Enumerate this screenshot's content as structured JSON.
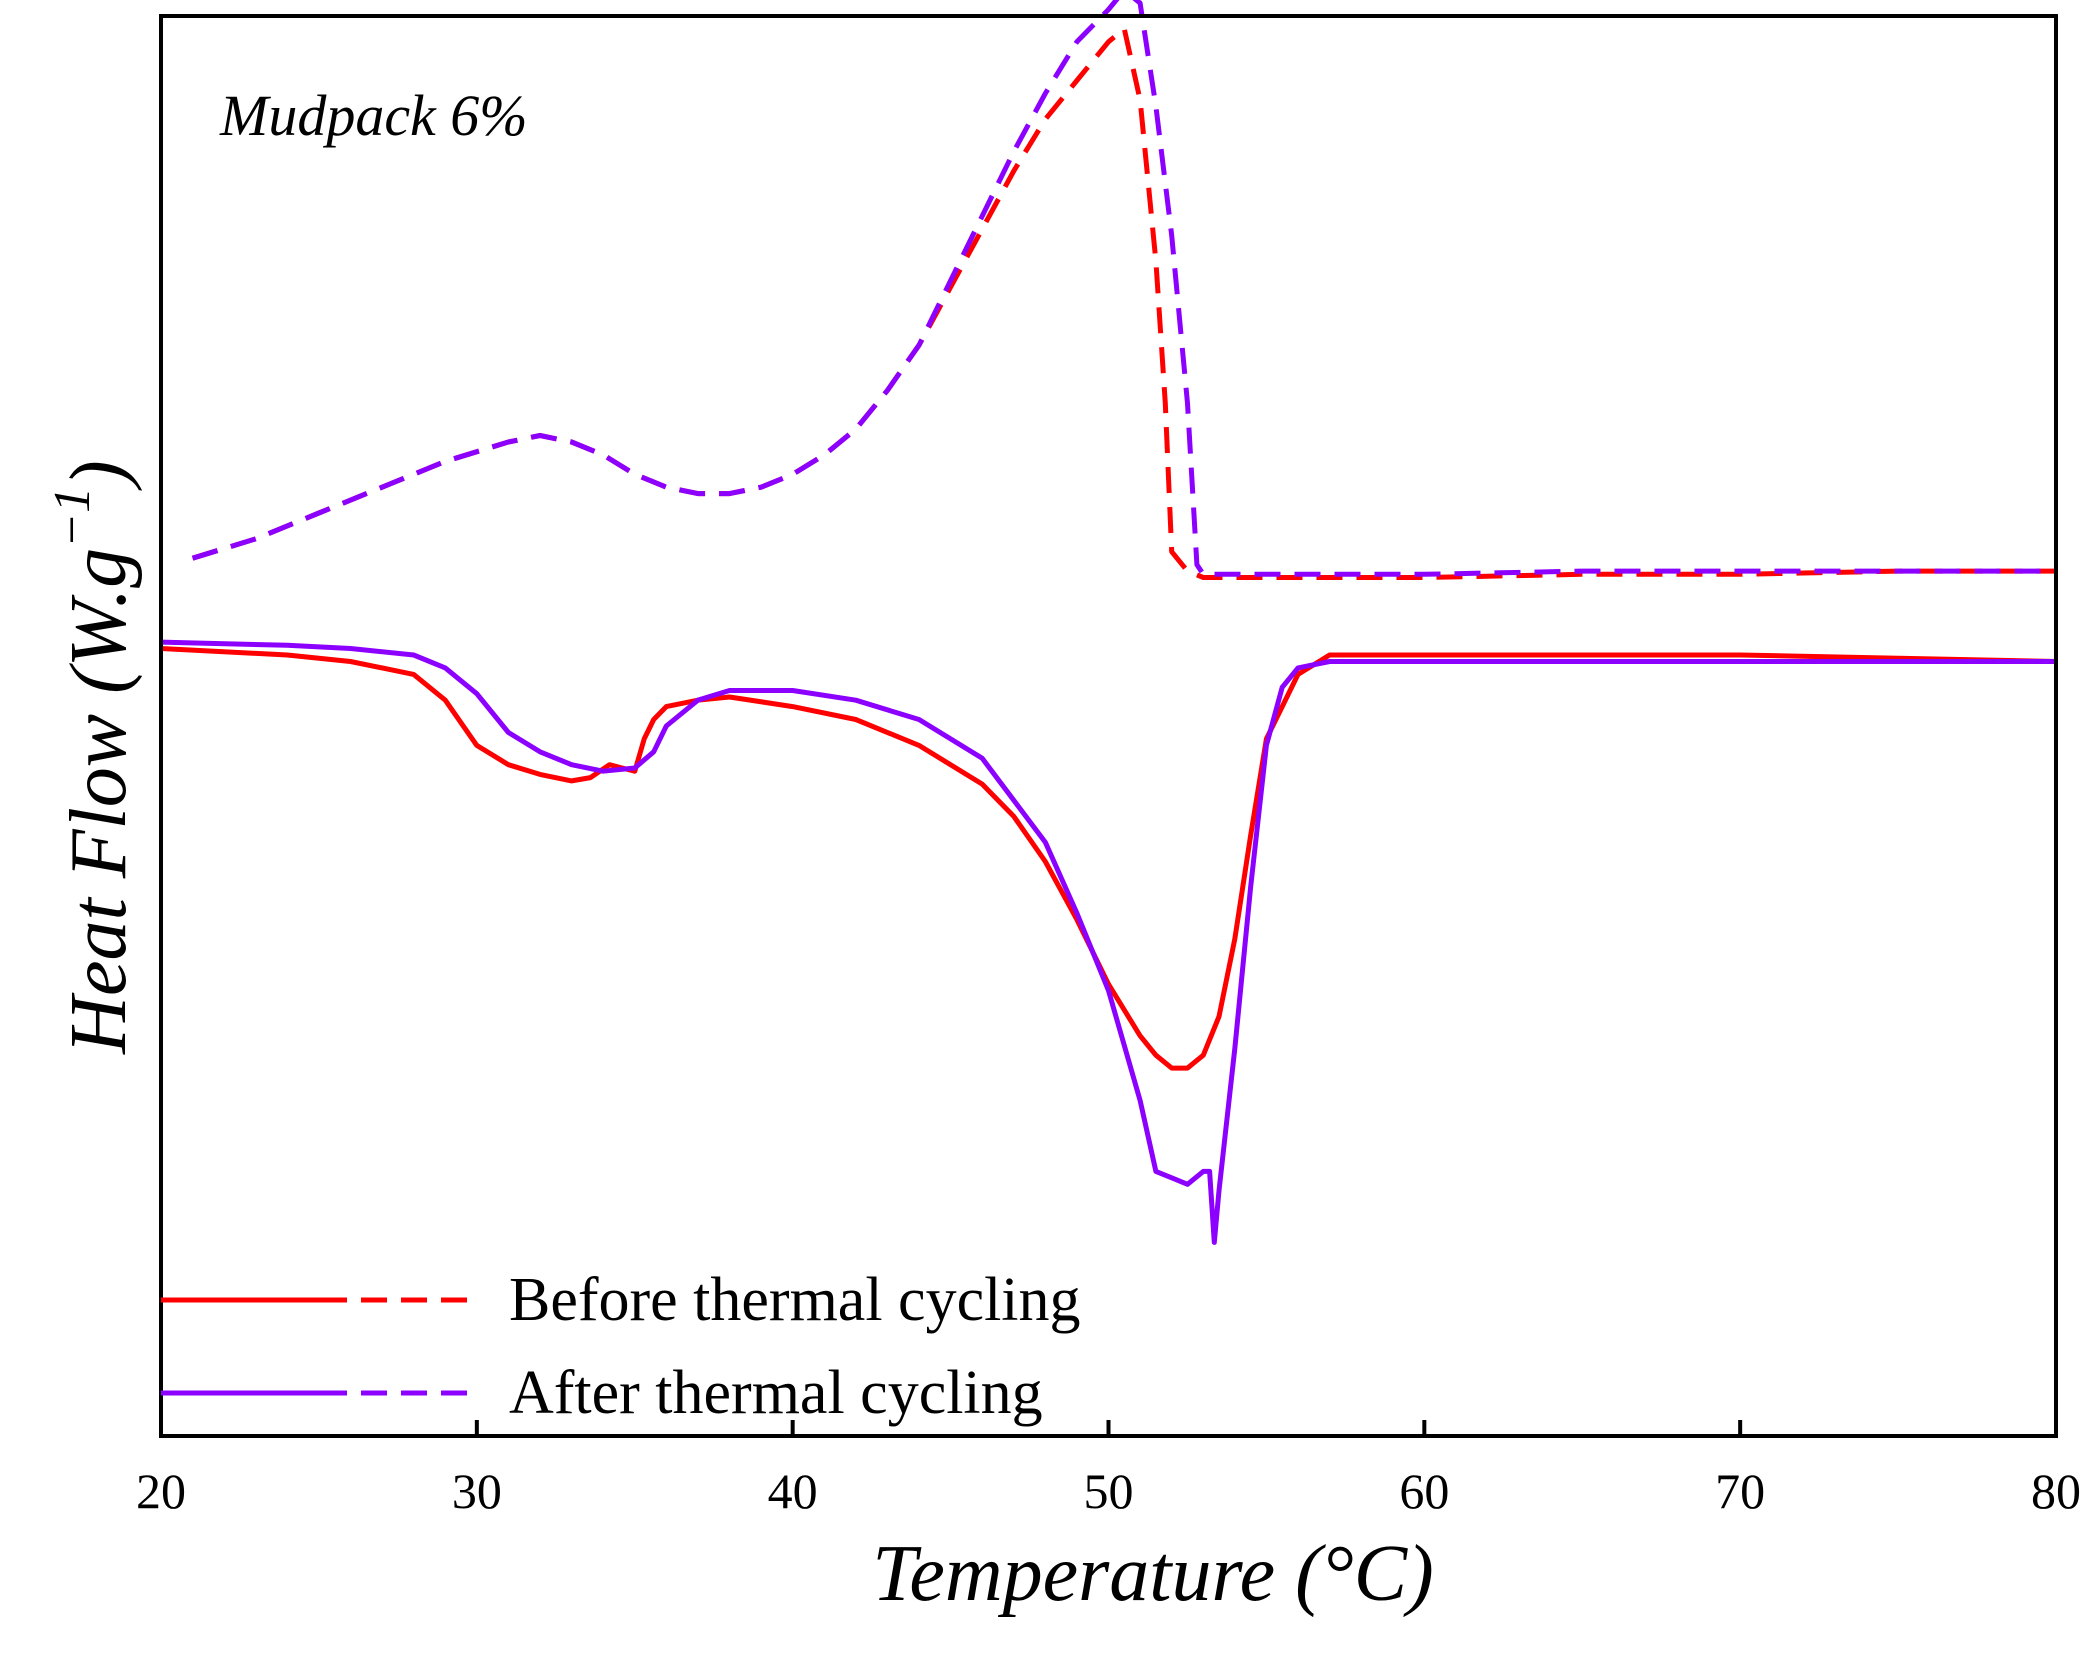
{
  "chart_data": {
    "type": "line",
    "title": "",
    "annotation": "Mudpack 6%",
    "xlabel": "Temperature (°C)",
    "ylabel_main": "Heat Flow (W.g",
    "ylabel_sup": "−1",
    "ylabel_close": ")",
    "xlim": [
      20,
      80
    ],
    "ylim": [
      -1.1,
      1.1
    ],
    "xticks": [
      20,
      30,
      40,
      50,
      60,
      70,
      80
    ],
    "y_tick_labels": false,
    "grid": false,
    "legend_position": "bottom-left",
    "legend": [
      {
        "label": "Before thermal cycling",
        "color": "#ff0000"
      },
      {
        "label": "After thermal cycling",
        "color": "#8b00ff"
      }
    ],
    "series": [
      {
        "group": "Before thermal cycling",
        "kind": "cooling",
        "style": "dashed",
        "color": "#ff0000",
        "x": [
          21,
          23,
          25,
          27,
          29,
          31,
          32,
          33,
          34,
          35,
          36,
          37,
          38,
          39,
          40,
          41,
          42,
          43,
          44,
          45,
          46,
          47,
          48,
          49,
          50,
          50.5,
          51,
          51.5,
          51.8,
          52,
          52.5,
          53,
          55,
          60,
          65,
          70,
          75,
          80
        ],
        "y": [
          0.26,
          0.29,
          0.33,
          0.37,
          0.41,
          0.44,
          0.45,
          0.44,
          0.42,
          0.39,
          0.37,
          0.36,
          0.36,
          0.37,
          0.39,
          0.42,
          0.46,
          0.52,
          0.59,
          0.68,
          0.77,
          0.86,
          0.94,
          1.0,
          1.06,
          1.08,
          0.97,
          0.72,
          0.5,
          0.27,
          0.24,
          0.23,
          0.23,
          0.23,
          0.235,
          0.235,
          0.24,
          0.24
        ]
      },
      {
        "group": "After thermal cycling",
        "kind": "cooling",
        "style": "dashed",
        "color": "#8b00ff",
        "x": [
          21,
          23,
          25,
          27,
          29,
          31,
          32,
          33,
          34,
          35,
          36,
          37,
          38,
          39,
          40,
          41,
          42,
          43,
          44,
          45,
          46,
          47,
          48,
          49,
          50,
          50.5,
          51,
          51.5,
          52,
          52.5,
          52.8,
          53,
          55,
          60,
          65,
          70,
          75,
          80
        ],
        "y": [
          0.26,
          0.29,
          0.33,
          0.37,
          0.41,
          0.44,
          0.45,
          0.44,
          0.42,
          0.39,
          0.37,
          0.36,
          0.36,
          0.37,
          0.39,
          0.42,
          0.46,
          0.52,
          0.59,
          0.69,
          0.79,
          0.89,
          0.98,
          1.06,
          1.11,
          1.14,
          1.12,
          0.96,
          0.76,
          0.5,
          0.25,
          0.235,
          0.235,
          0.235,
          0.24,
          0.24,
          0.24,
          0.24
        ]
      },
      {
        "group": "Before thermal cycling",
        "kind": "heating",
        "style": "solid",
        "color": "#ff0000",
        "x": [
          20,
          24,
          26,
          28,
          29,
          30,
          31,
          32,
          33,
          33.6,
          34.2,
          34.6,
          35,
          35.3,
          35.6,
          36,
          37,
          38,
          40,
          42,
          44,
          46,
          47,
          48,
          49,
          50,
          51,
          51.5,
          52,
          52.5,
          53,
          53.5,
          54,
          54.5,
          55,
          56,
          57,
          60,
          65,
          70,
          75,
          80
        ],
        "y": [
          0.12,
          0.11,
          0.1,
          0.08,
          0.04,
          -0.03,
          -0.06,
          -0.075,
          -0.085,
          -0.08,
          -0.06,
          -0.065,
          -0.07,
          -0.02,
          0.01,
          0.03,
          0.04,
          0.045,
          0.03,
          0.01,
          -0.03,
          -0.09,
          -0.14,
          -0.21,
          -0.3,
          -0.4,
          -0.48,
          -0.51,
          -0.53,
          -0.53,
          -0.51,
          -0.45,
          -0.33,
          -0.17,
          -0.02,
          0.08,
          0.11,
          0.11,
          0.11,
          0.11,
          0.105,
          0.1
        ]
      },
      {
        "group": "After thermal cycling",
        "kind": "heating",
        "style": "solid",
        "color": "#8b00ff",
        "x": [
          20,
          24,
          26,
          28,
          29,
          30,
          31,
          32,
          33,
          34,
          35,
          35.6,
          36,
          37,
          38,
          40,
          42,
          44,
          46,
          48,
          49,
          50,
          51,
          51.5,
          52,
          52.5,
          53,
          53.2,
          53.35,
          53.5,
          54,
          54.5,
          55,
          55.5,
          56,
          57,
          60,
          65,
          70,
          75,
          80
        ],
        "y": [
          0.13,
          0.125,
          0.12,
          0.11,
          0.09,
          0.05,
          -0.01,
          -0.04,
          -0.06,
          -0.07,
          -0.065,
          -0.04,
          0.0,
          0.04,
          0.055,
          0.055,
          0.04,
          0.01,
          -0.05,
          -0.18,
          -0.29,
          -0.41,
          -0.58,
          -0.69,
          -0.7,
          -0.71,
          -0.69,
          -0.69,
          -0.8,
          -0.72,
          -0.5,
          -0.25,
          -0.03,
          0.06,
          0.09,
          0.1,
          0.1,
          0.1,
          0.1,
          0.1,
          0.1
        ]
      }
    ]
  }
}
